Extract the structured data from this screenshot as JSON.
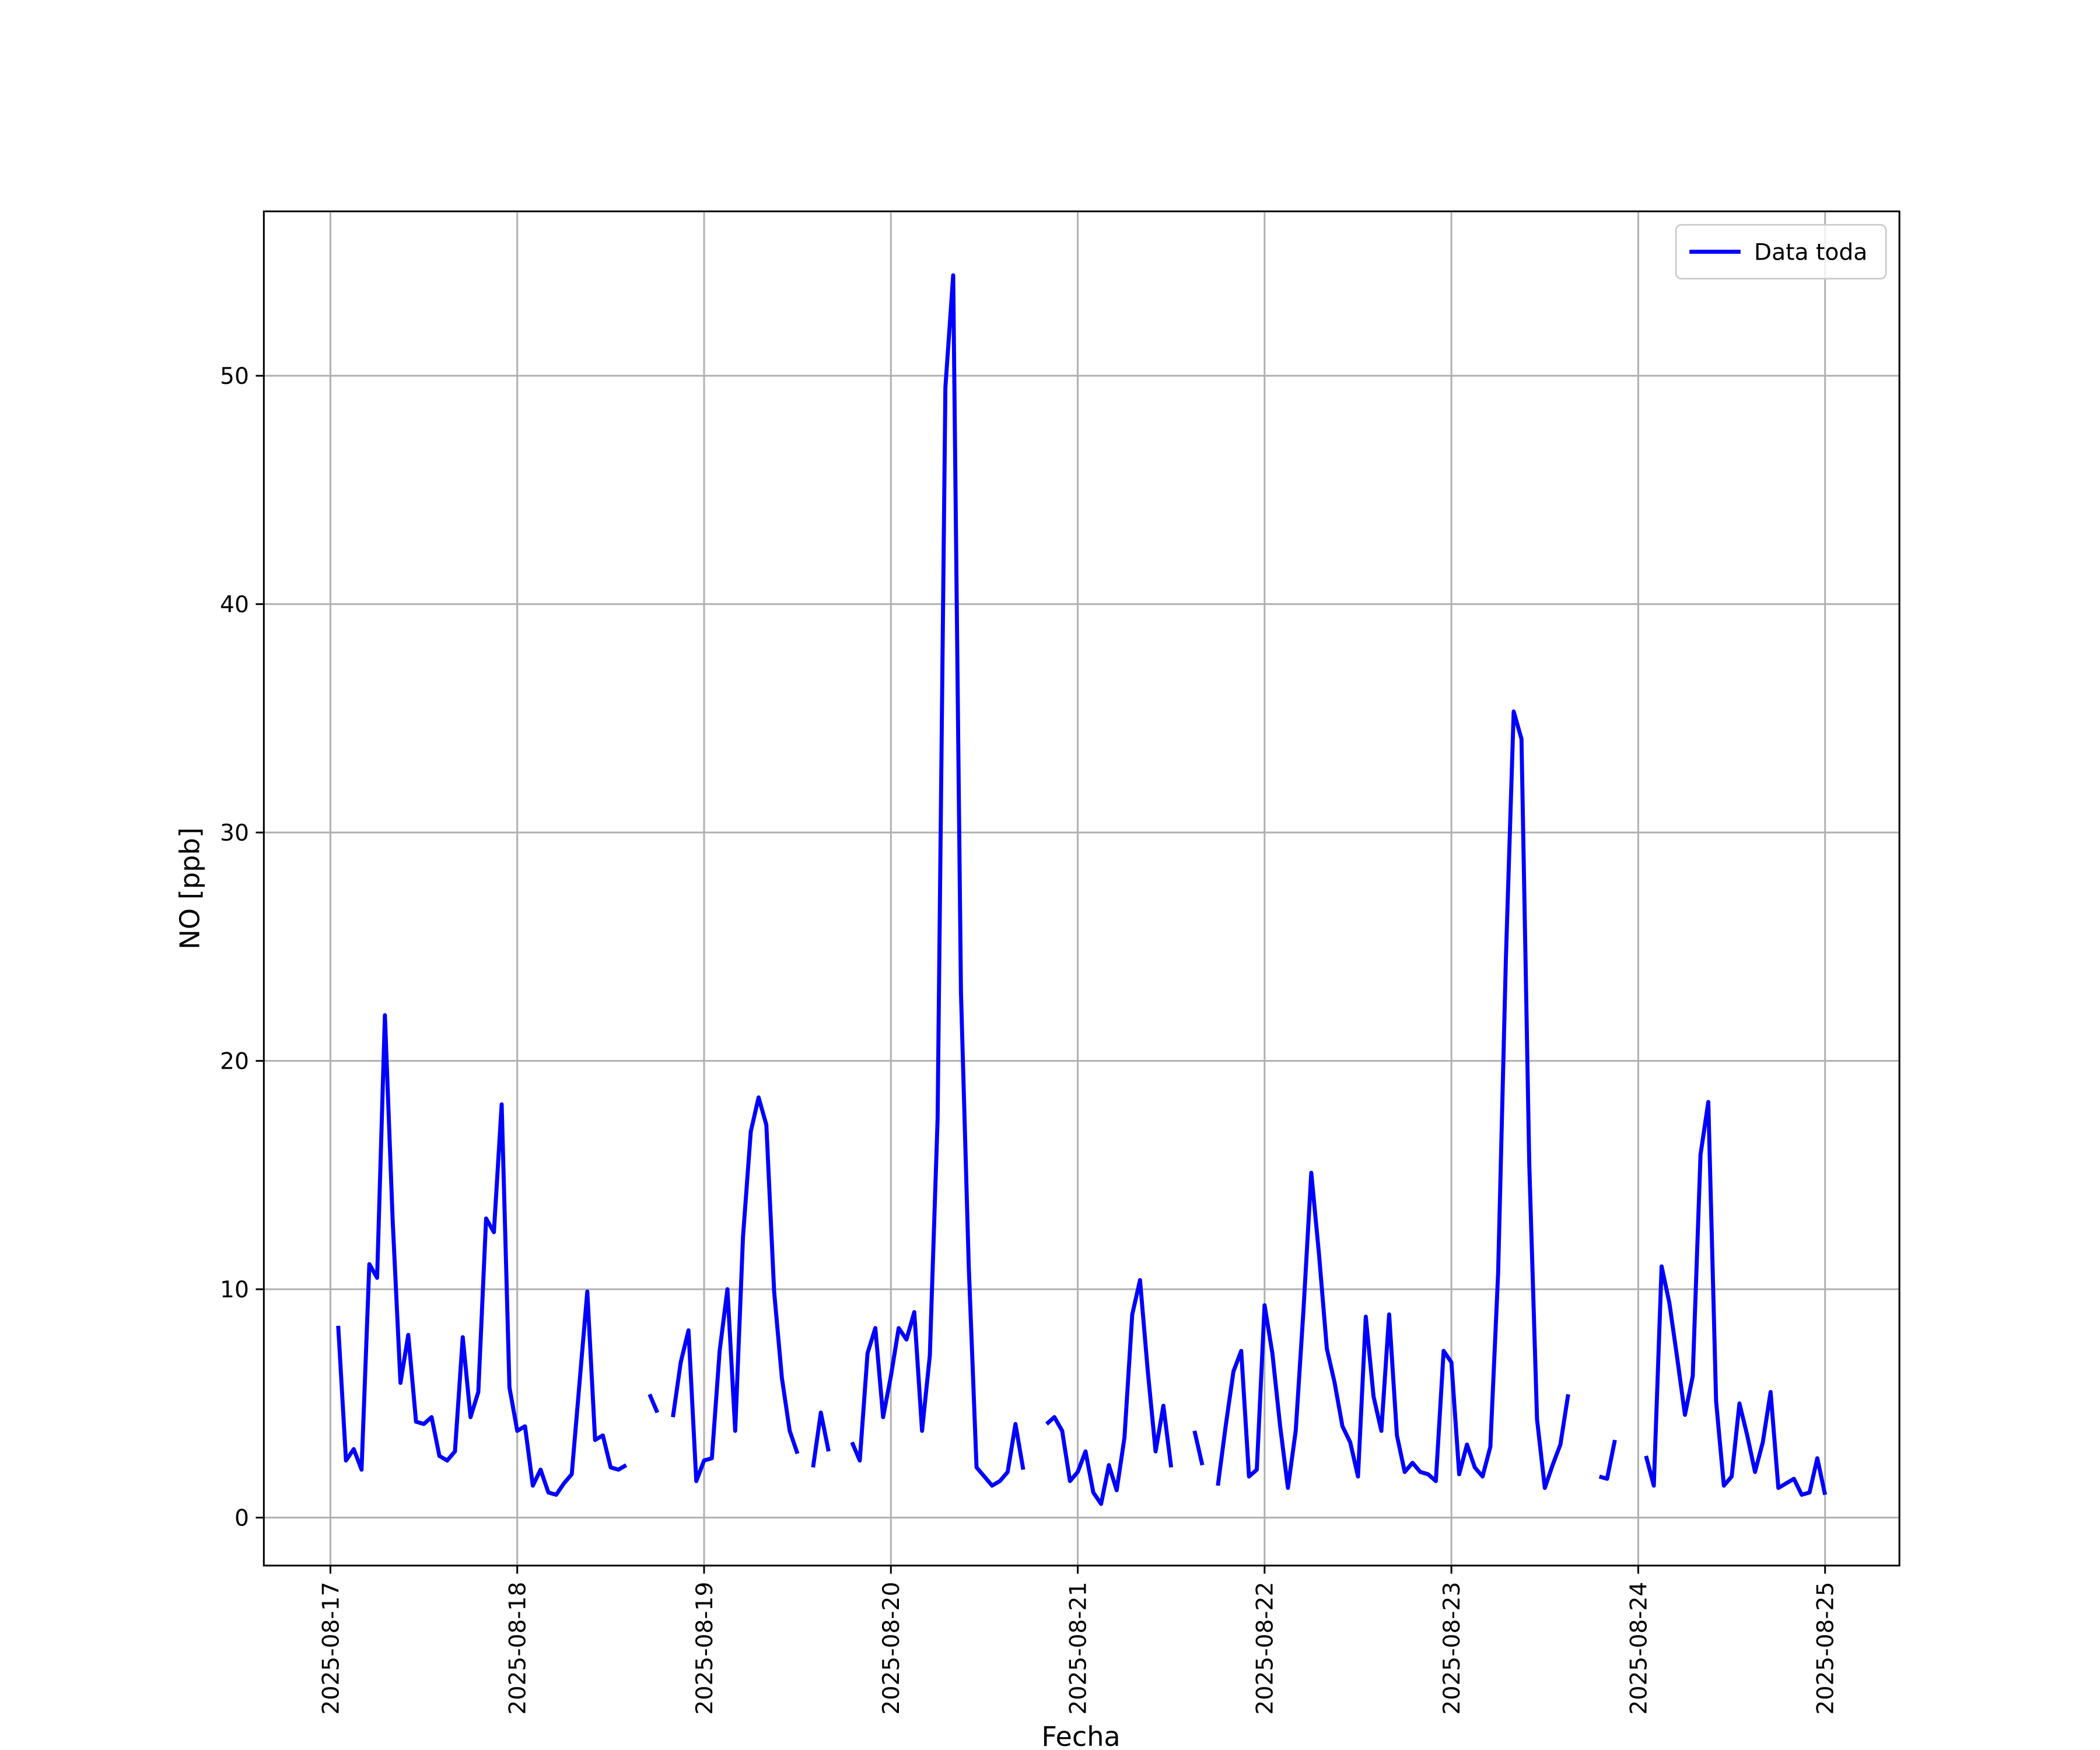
{
  "chart_data": {
    "type": "line",
    "xlabel": "Fecha",
    "ylabel": "NO [ppb]",
    "x": [
      1,
      2,
      3,
      4,
      5,
      6,
      7,
      8,
      9,
      10,
      11,
      12,
      13,
      14,
      15,
      16,
      17,
      18,
      19,
      20,
      21,
      22,
      23,
      24,
      25,
      26,
      27,
      28,
      29,
      30,
      31,
      32,
      33,
      34,
      35,
      36,
      37,
      38,
      39,
      40,
      41,
      42,
      43,
      44,
      45,
      46,
      47,
      48,
      49,
      50,
      51,
      52,
      53,
      54,
      55,
      56,
      57,
      58,
      59,
      60,
      61,
      62,
      63,
      64,
      65,
      66,
      67,
      68,
      69,
      70,
      71,
      72,
      73,
      74,
      75,
      76,
      77,
      78,
      79,
      80,
      81,
      82,
      83,
      84,
      85,
      86,
      87,
      88,
      89,
      90,
      91,
      92,
      93,
      94,
      95,
      96,
      97,
      98,
      99,
      100,
      101,
      102,
      103,
      104,
      105,
      106,
      107,
      108,
      109,
      110,
      111,
      112,
      113,
      114,
      115,
      116,
      117,
      118,
      119,
      120,
      121,
      122,
      123,
      124,
      125,
      126,
      127,
      128,
      129,
      130,
      131,
      132,
      133,
      134,
      135,
      136,
      137,
      138,
      139,
      140,
      141,
      142,
      143,
      144,
      145,
      146,
      147,
      148,
      149,
      150,
      151,
      152,
      153,
      154,
      155,
      156,
      157,
      158,
      159,
      160,
      161,
      162,
      163,
      164,
      165,
      166,
      167,
      168,
      169,
      170,
      171,
      172,
      173,
      174,
      175,
      176,
      177,
      178,
      179,
      180,
      181,
      182,
      183,
      184,
      185,
      186,
      187,
      188,
      189,
      190,
      191,
      192
    ],
    "series": [
      {
        "name": "Data toda",
        "color": "#0000ff",
        "values": [
          8.4,
          2.5,
          3.0,
          2.1,
          11.1,
          10.5,
          22.0,
          13,
          5.9,
          8.0,
          4.2,
          4.1,
          4.4,
          2.7,
          2.5,
          2.9,
          7.9,
          4.4,
          5.5,
          13.1,
          12.5,
          18.1,
          5.7,
          3.8,
          4.0,
          1.4,
          2.1,
          1.1,
          1.0,
          1.5,
          1.9,
          5.9,
          9.9,
          3.4,
          3.6,
          2.2,
          2.1,
          2.3,
          null,
          null,
          5.4,
          4.6,
          null,
          4.4,
          6.8,
          8.2,
          1.6,
          2.5,
          2.6,
          7.3,
          10.0,
          3.8,
          12.3,
          16.9,
          18.4,
          17.2,
          9.9,
          6.1,
          3.8,
          2.8,
          null,
          2.2,
          4.6,
          2.9,
          null,
          null,
          3.3,
          2.5,
          7.2,
          8.3,
          4.4,
          6.2,
          8.3,
          7.8,
          9.0,
          3.8,
          7.1,
          17.5,
          49.5,
          54.4,
          23,
          11,
          2.2,
          1.8,
          1.4,
          1.6,
          2.0,
          4.1,
          2.1,
          null,
          null,
          4.1,
          4.4,
          3.8,
          1.6,
          2.0,
          2.9,
          1.1,
          0.6,
          2.3,
          1.2,
          3.5,
          8.9,
          10.4,
          6.4,
          2.9,
          4.9,
          2.2,
          null,
          null,
          3.8,
          2.3,
          null,
          1.4,
          4.0,
          6.4,
          7.3,
          1.8,
          2.1,
          9.3,
          7.2,
          4.0,
          1.3,
          3.8,
          9.1,
          15.1,
          11.5,
          7.4,
          5.9,
          4.0,
          3.3,
          1.8,
          8.8,
          5.3,
          3.8,
          8.9,
          3.6,
          2.0,
          2.4,
          2.0,
          1.9,
          1.6,
          7.3,
          6.8,
          1.9,
          3.2,
          2.2,
          1.8,
          3.1,
          10.7,
          24.5,
          35.3,
          34.1,
          15.5,
          4.3,
          1.3,
          2.3,
          3.2,
          5.4,
          null,
          null,
          null,
          1.8,
          1.7,
          3.4,
          null,
          null,
          null,
          2.7,
          1.4,
          11.0,
          9.4,
          7.0,
          4.5,
          6.2,
          15.9,
          18.2,
          5.1,
          1.4,
          1.8,
          5.0,
          3.6,
          2.0,
          3.3,
          5.5,
          1.3,
          1.5,
          1.7,
          1.0,
          1.1,
          2.6,
          1.0
        ]
      }
    ],
    "xlim": [
      -8.55,
      201.55
    ],
    "xticks": [
      {
        "value": 0,
        "label": "2025-08-17"
      },
      {
        "value": 24,
        "label": "2025-08-18"
      },
      {
        "value": 48,
        "label": "2025-08-19"
      },
      {
        "value": 72,
        "label": "2025-08-20"
      },
      {
        "value": 96,
        "label": "2025-08-21"
      },
      {
        "value": 120,
        "label": "2025-08-22"
      },
      {
        "value": 144,
        "label": "2025-08-23"
      },
      {
        "value": 168,
        "label": "2025-08-24"
      },
      {
        "value": 192,
        "label": "2025-08-25"
      }
    ],
    "ylim": [
      -2.1,
      57.2
    ],
    "yticks": [
      0,
      10,
      20,
      30,
      40,
      50
    ],
    "grid": true,
    "legend": "upper right"
  }
}
